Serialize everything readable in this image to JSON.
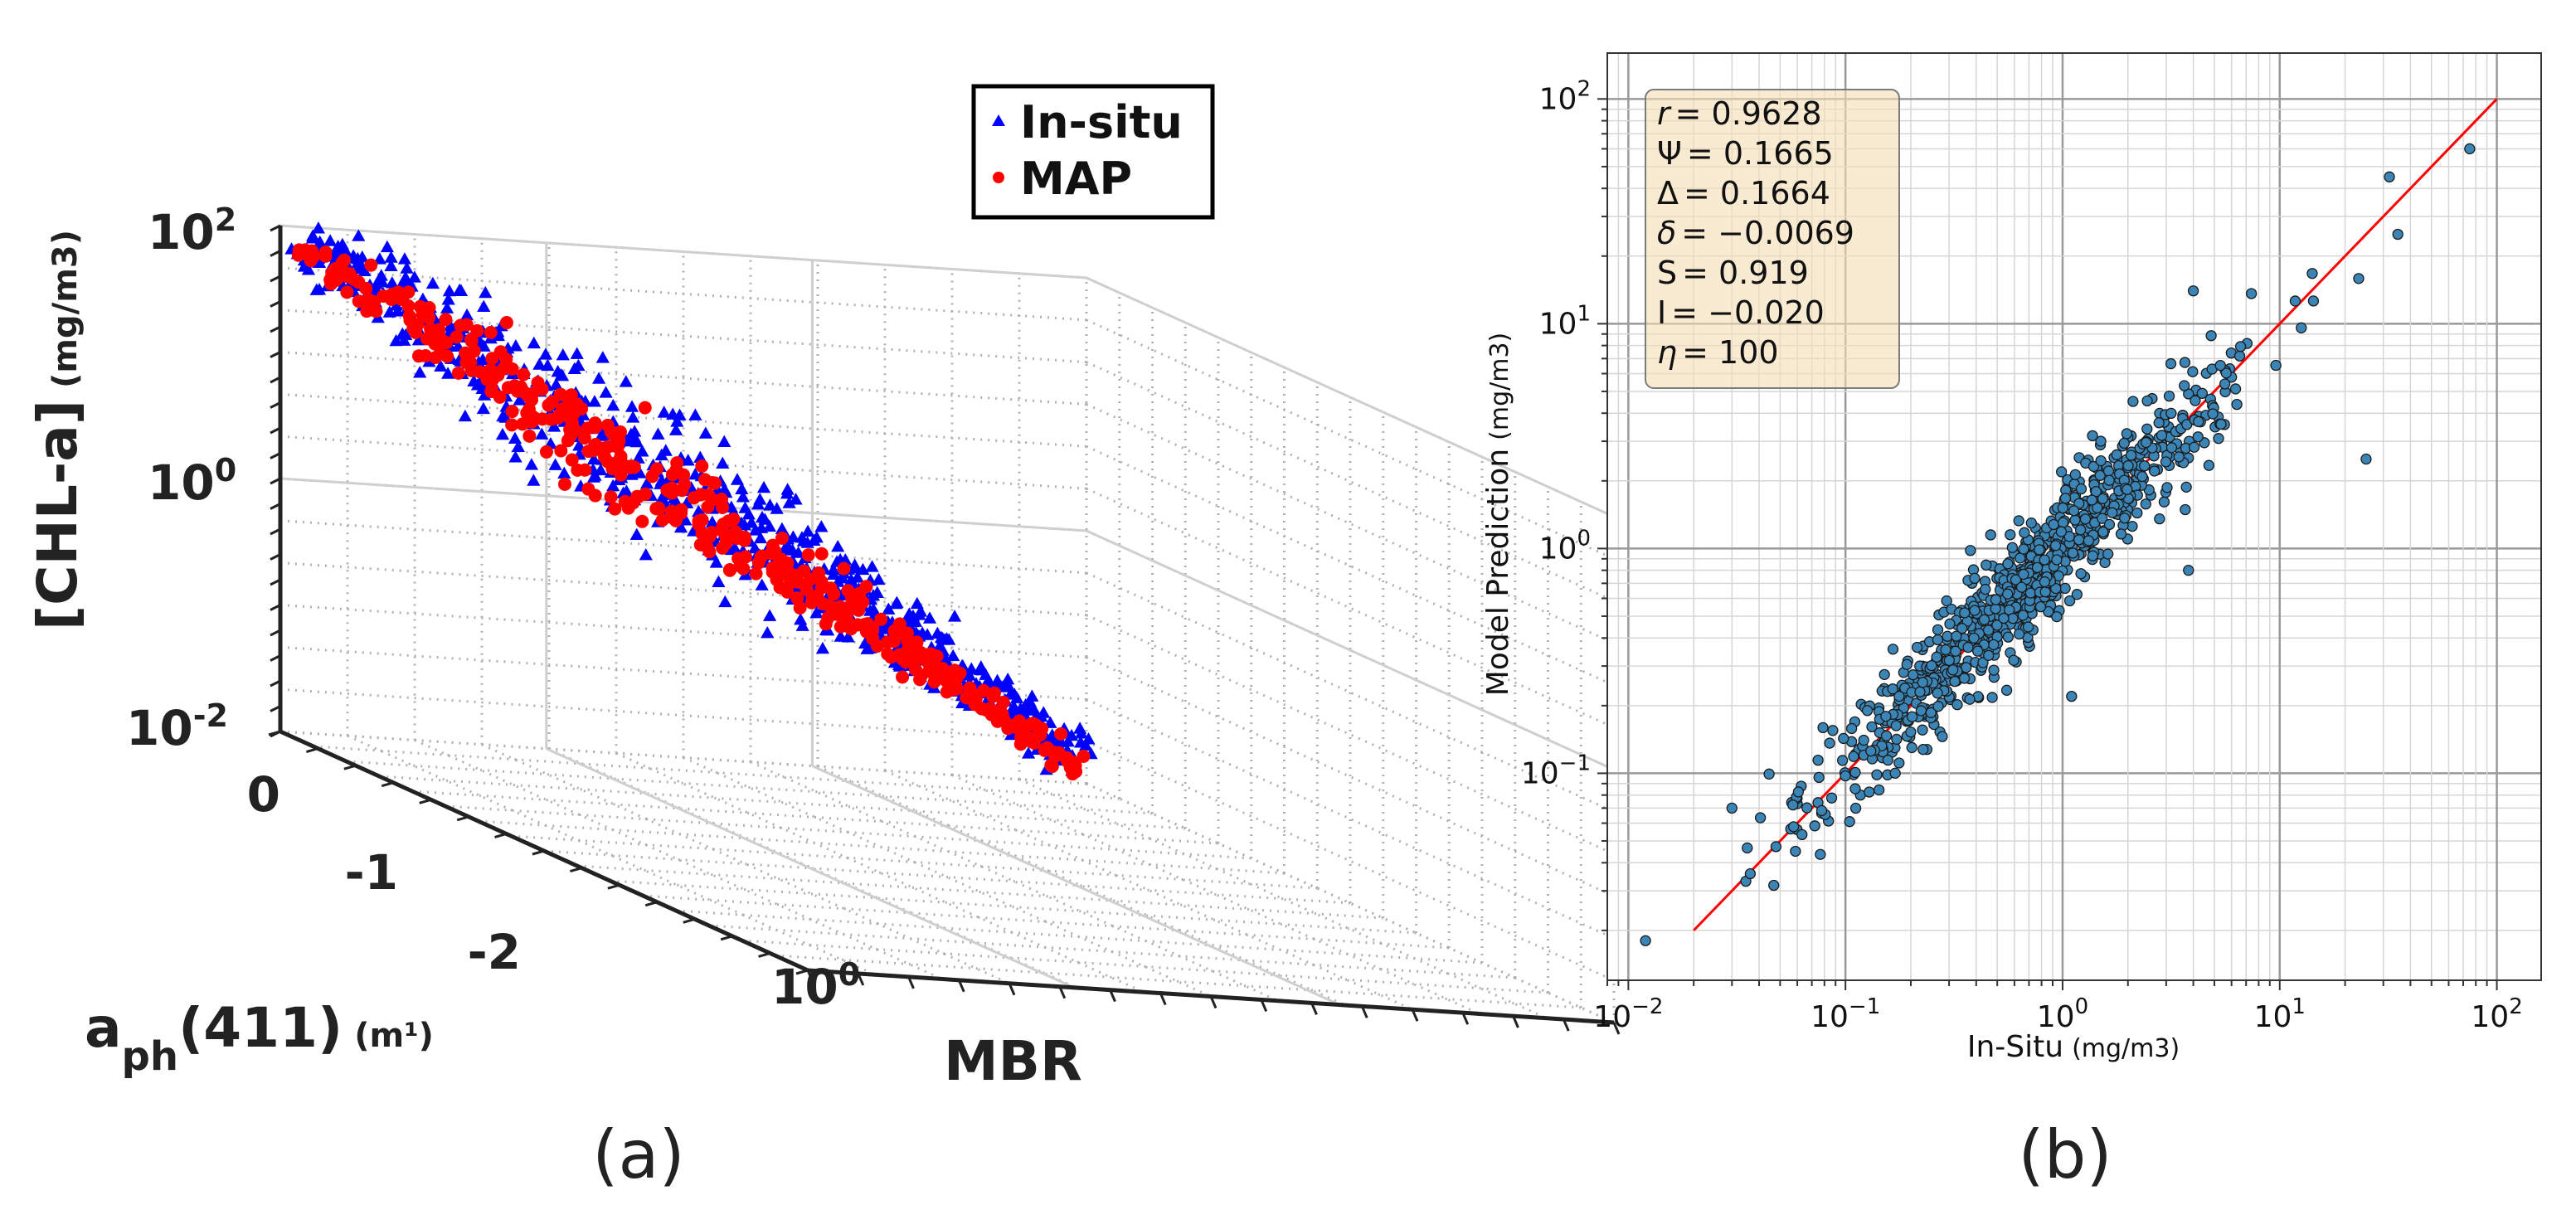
{
  "figure": {
    "panel_a_caption": "(a)",
    "panel_b_caption": "(b)"
  },
  "chart_data": [
    {
      "panel": "a",
      "type": "scatter",
      "projection": "3d",
      "zlabel": "[CHL-a]",
      "zlabel_units": "(mg/m3)",
      "ylabel_main": "a",
      "ylabel_sub": "ph",
      "ylabel_rest": "(411)",
      "ylabel_units": "(m¹)",
      "xlabel": "MBR",
      "z_ticks": [
        {
          "base": "10",
          "exp": "2",
          "value": 100
        },
        {
          "base": "10",
          "exp": "0",
          "value": 1
        },
        {
          "base": "10",
          "exp": "-2",
          "value": 0.01
        }
      ],
      "y_ticks": [
        "0",
        "-1",
        "-2"
      ],
      "x_ticks": [
        {
          "base": "10",
          "exp": "0",
          "value": 1
        }
      ],
      "z_scale": "log",
      "zlim": [
        0.01,
        100
      ],
      "ylim": [
        -2.5,
        0.5
      ],
      "grid": true,
      "legend_position": "top-right",
      "series": [
        {
          "name": "In-situ",
          "marker": "triangle",
          "color": "#0000ff",
          "n_points": 750
        },
        {
          "name": "MAP",
          "marker": "circle",
          "color": "#ff0000",
          "n_points": 430
        }
      ],
      "trend": {
        "mbr_range": [
          0.3,
          8
        ],
        "chl_range": [
          0.03,
          50
        ]
      }
    },
    {
      "panel": "b",
      "type": "scatter",
      "xlabel": "In-Situ",
      "xlabel_units": "(mg/m3)",
      "ylabel": "Model Prediction",
      "ylabel_units": "(mg/m3)",
      "x_scale": "log",
      "y_scale": "log",
      "xlim": [
        0.008,
        160
      ],
      "ylim": [
        0.012,
        160
      ],
      "x_ticks": [
        {
          "base": "10",
          "exp": "−2",
          "value": 0.01
        },
        {
          "base": "10",
          "exp": "−1",
          "value": 0.1
        },
        {
          "base": "10",
          "exp": "0",
          "value": 1
        },
        {
          "base": "10",
          "exp": "1",
          "value": 10
        },
        {
          "base": "10",
          "exp": "2",
          "value": 100
        }
      ],
      "y_ticks": [
        {
          "base": "10",
          "exp": "−1",
          "value": 0.1
        },
        {
          "base": "10",
          "exp": "0",
          "value": 1
        },
        {
          "base": "10",
          "exp": "1",
          "value": 10
        },
        {
          "base": "10",
          "exp": "2",
          "value": 100
        }
      ],
      "grid": true,
      "point_color": "#3b84b6",
      "n_points": 900,
      "one_to_one_line": {
        "color": "#ff0000",
        "from": 0.02,
        "to": 100
      },
      "stats": [
        {
          "sym": "r",
          "italic": true,
          "val": "= 0.9628"
        },
        {
          "sym": "Ψ",
          "italic": false,
          "val": "= 0.1665"
        },
        {
          "sym": "Δ",
          "italic": false,
          "val": "= 0.1664"
        },
        {
          "sym": "δ",
          "italic": true,
          "val": "= −0.0069"
        },
        {
          "sym": "S",
          "italic": false,
          "val": "= 0.919"
        },
        {
          "sym": "I",
          "italic": false,
          "val": "= −0.020"
        },
        {
          "sym": "η",
          "italic": true,
          "val": "= 100"
        }
      ],
      "outliers": [
        {
          "x": 0.012,
          "y": 0.018
        },
        {
          "x": 25,
          "y": 2.5
        },
        {
          "x": 75,
          "y": 60
        },
        {
          "x": 32,
          "y": 45
        },
        {
          "x": 4,
          "y": 14
        },
        {
          "x": 1.5,
          "y": 3.0
        },
        {
          "x": 1.1,
          "y": 0.22
        },
        {
          "x": 0.03,
          "y": 0.07
        },
        {
          "x": 3.8,
          "y": 0.8
        },
        {
          "x": 35,
          "y": 25
        }
      ]
    }
  ]
}
